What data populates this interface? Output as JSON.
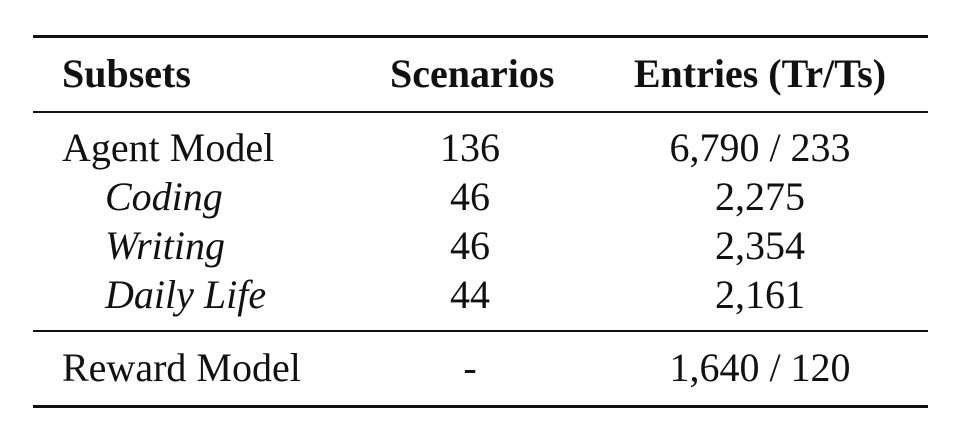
{
  "table": {
    "headers": [
      "Subsets",
      "Scenarios",
      "Entries (Tr/Ts)"
    ],
    "rows": [
      {
        "subset": "Agent Model",
        "scenarios": "136",
        "entries": "6,790 / 233"
      },
      {
        "subset": "Coding",
        "scenarios": "46",
        "entries": "2,275"
      },
      {
        "subset": "Writing",
        "scenarios": "46",
        "entries": "2,354"
      },
      {
        "subset": "Daily Life",
        "scenarios": "44",
        "entries": "2,161"
      },
      {
        "subset": "Reward Model",
        "scenarios": "-",
        "entries": "1,640 / 120"
      }
    ]
  }
}
